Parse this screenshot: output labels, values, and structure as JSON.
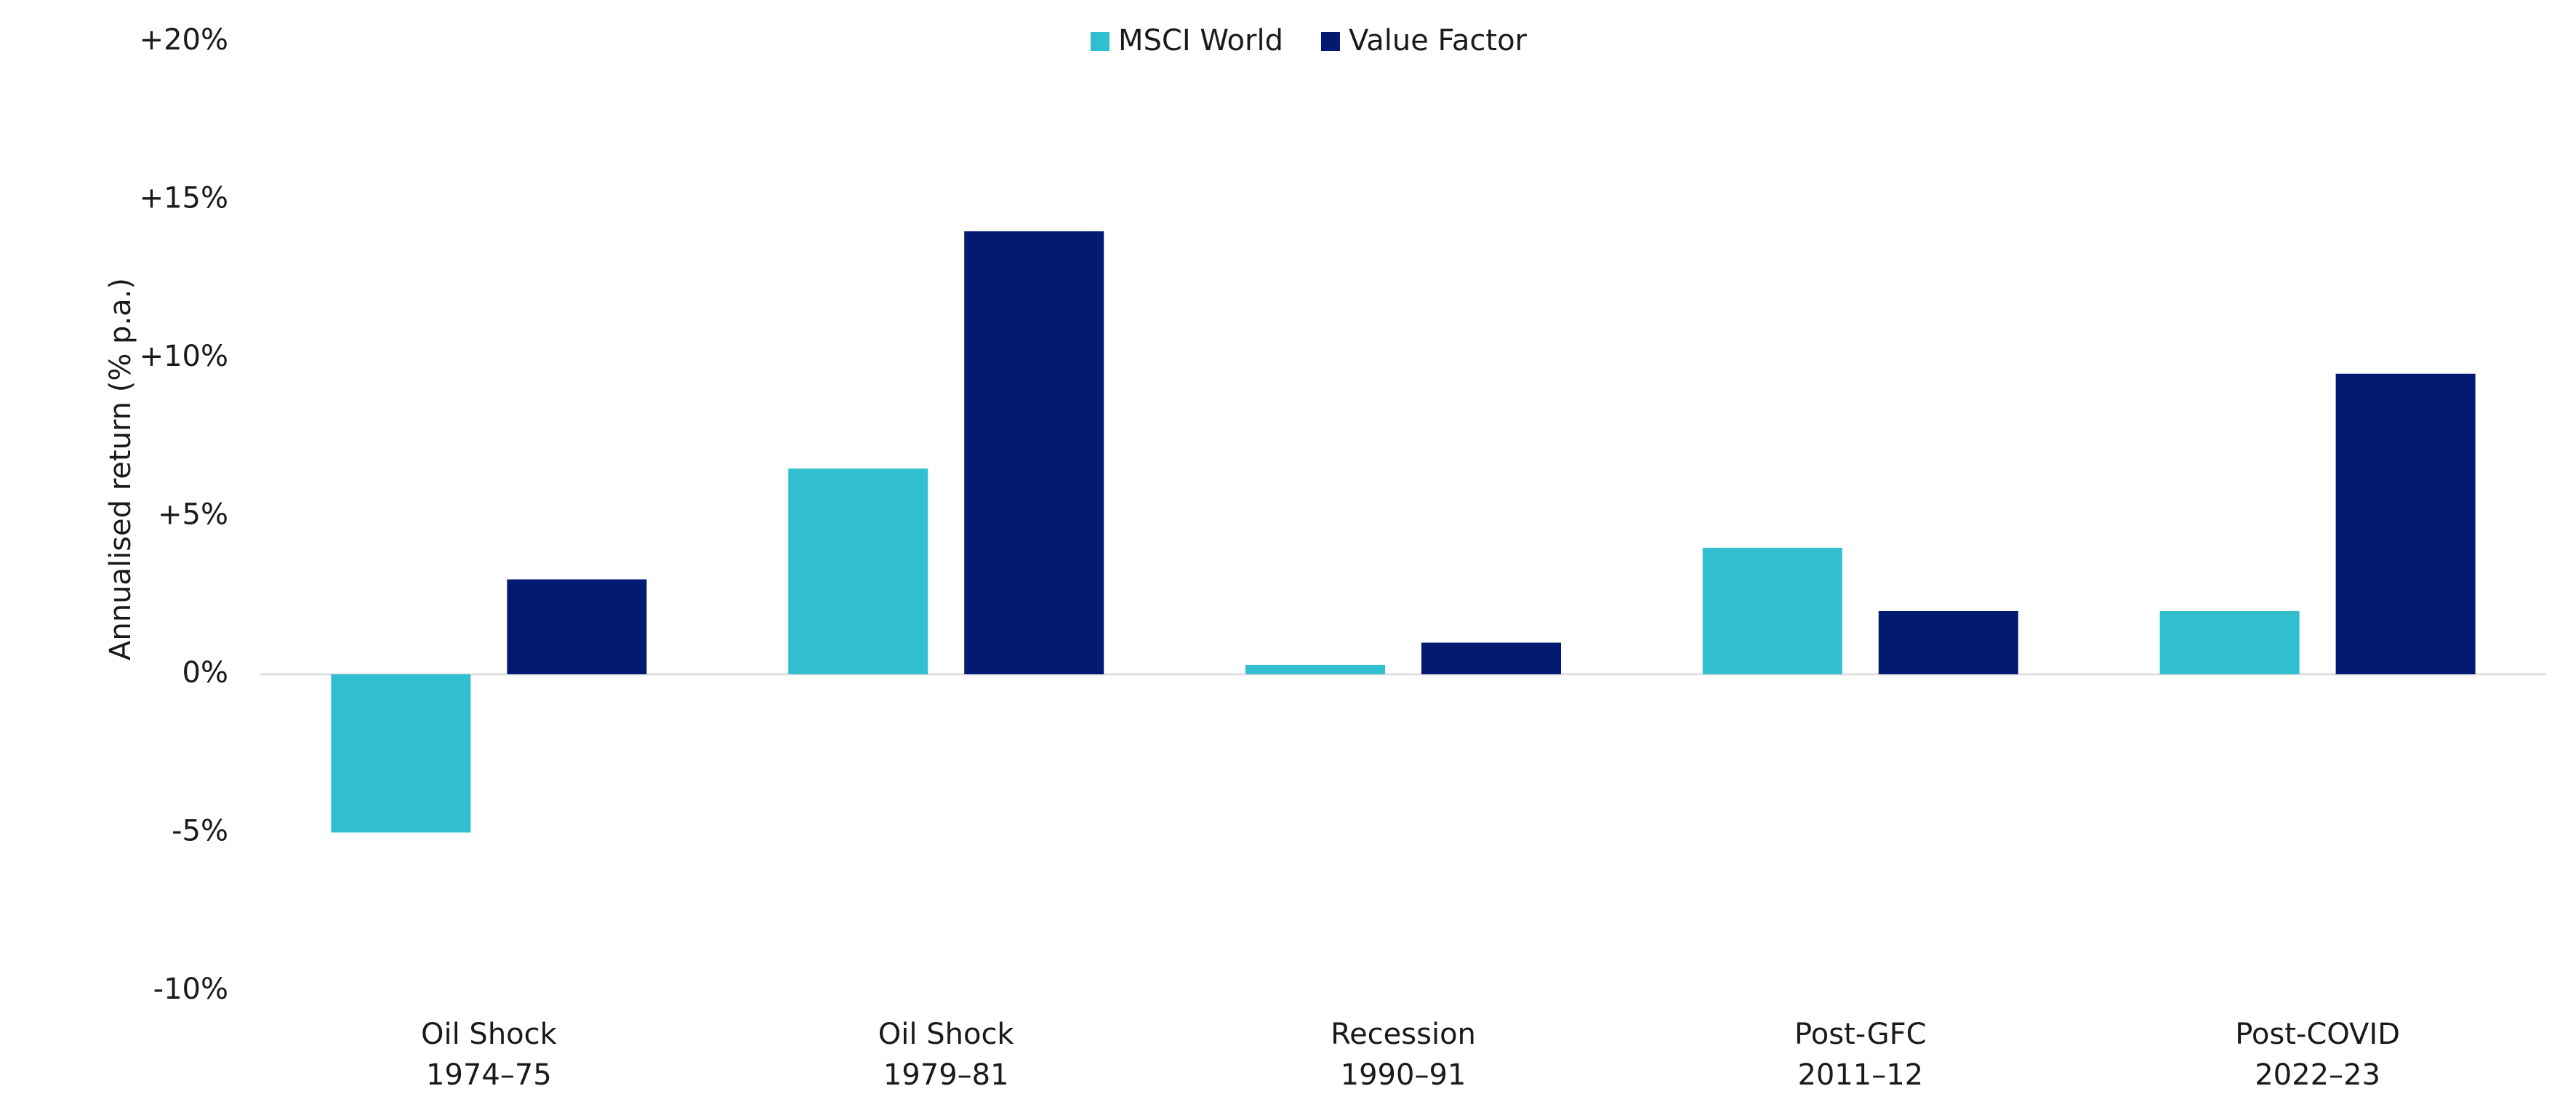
{
  "chart_data": {
    "type": "bar",
    "y_label": "Annualised return (% p.a.)",
    "categories": [
      [
        "Oil Shock",
        "1974–75"
      ],
      [
        "Oil Shock",
        "1979–81"
      ],
      [
        "Recession",
        "1990–91"
      ],
      [
        "Post-GFC",
        "2011–12"
      ],
      [
        "Post-COVID",
        "2022–23"
      ]
    ],
    "series": [
      {
        "name": "MSCI World",
        "color": "#31bfcf",
        "values": [
          -5,
          6.5,
          0.3,
          4,
          2
        ]
      },
      {
        "name": "Value Factor",
        "color": "#021a72",
        "values": [
          3,
          14,
          1,
          2,
          9.5
        ]
      }
    ],
    "ylim": [
      -10,
      20
    ],
    "yticks": [
      {
        "value": -10,
        "label": "-10%"
      },
      {
        "value": -5,
        "label": "-5%"
      },
      {
        "value": 0,
        "label": "0%"
      },
      {
        "value": 5,
        "label": "+5%"
      },
      {
        "value": 10,
        "label": "+10%"
      },
      {
        "value": 15,
        "label": "+15%"
      },
      {
        "value": 20,
        "label": "+20%"
      }
    ],
    "legend": "top"
  }
}
